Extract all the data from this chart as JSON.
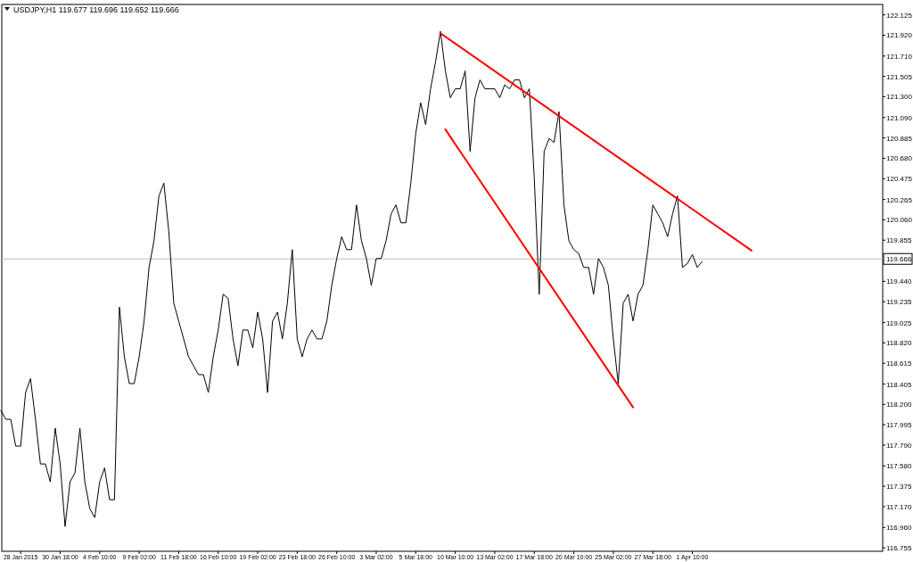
{
  "chart_data": {
    "type": "line",
    "title": "USDJPY,H1  119.677 119.696 119.652 119.666",
    "categories": [
      null,
      null,
      null,
      null,
      "28 Jan 2015",
      null,
      null,
      null,
      null,
      null,
      null,
      null,
      "30 Jan 18:00",
      null,
      null,
      null,
      null,
      null,
      null,
      null,
      "4 Feb 10:00",
      null,
      null,
      null,
      null,
      null,
      null,
      null,
      "9 Feb 02:00",
      null,
      null,
      null,
      null,
      null,
      null,
      null,
      "11 Feb 18:00",
      null,
      null,
      null,
      null,
      null,
      null,
      null,
      "16 Feb 10:00",
      null,
      null,
      null,
      null,
      null,
      null,
      null,
      "19 Feb 02:00",
      null,
      null,
      null,
      null,
      null,
      null,
      null,
      "23 Feb 18:00",
      null,
      null,
      null,
      null,
      null,
      null,
      null,
      "26 Feb 10:00",
      null,
      null,
      null,
      null,
      null,
      null,
      null,
      "3 Mar 02:00",
      null,
      null,
      null,
      null,
      null,
      null,
      null,
      "5 Mar 18:00",
      null,
      null,
      null,
      null,
      null,
      null,
      null,
      "10 Mar 10:00",
      null,
      null,
      null,
      null,
      null,
      null,
      null,
      "13 Mar 02:00",
      null,
      null,
      null,
      null,
      null,
      null,
      null,
      "17 Mar 18:00",
      null,
      null,
      null,
      null,
      null,
      null,
      null,
      "20 Mar 10:00",
      null,
      null,
      null,
      null,
      null,
      null,
      null,
      "25 Mar 02:00",
      null,
      null,
      null,
      null,
      null,
      null,
      null,
      "27 Mar 18:00",
      null,
      null,
      null,
      null,
      null,
      null,
      null,
      "1 Apr 10:00",
      null,
      null,
      null,
      null,
      null,
      null,
      null,
      null,
      null,
      null,
      null,
      null,
      null,
      null,
      null,
      null,
      null,
      null,
      null,
      null,
      null,
      null,
      null,
      null,
      null,
      null,
      null,
      null,
      null,
      null,
      null,
      null,
      null,
      null,
      null,
      null,
      null,
      null
    ],
    "ylim": [
      116.72,
      122.23
    ],
    "yticks": [
      116.755,
      {
        "value": 116.96,
        "label": "116.960"
      },
      {
        "value": 117.17,
        "label": "117.170"
      },
      117.375,
      {
        "value": 117.58,
        "label": "117.580"
      },
      {
        "value": 117.79,
        "label": "117.790"
      },
      117.995,
      {
        "value": 118.2,
        "label": "118.200"
      },
      118.405,
      118.615,
      {
        "value": 118.82,
        "label": "118.820"
      },
      119.025,
      119.235,
      {
        "value": 119.44,
        "label": "119.440"
      },
      119.855,
      {
        "value": 120.06,
        "label": "120.060"
      },
      120.265,
      120.475,
      {
        "value": 120.68,
        "label": "120.680"
      },
      120.885,
      {
        "value": 121.09,
        "label": "121.090"
      },
      {
        "value": 121.3,
        "label": "121.300"
      },
      121.505,
      {
        "value": 121.71,
        "label": "121.710"
      },
      {
        "value": 121.92,
        "label": "121.920"
      },
      122.125
    ],
    "grid": false,
    "series": [
      {
        "color": "#000000",
        "values": [
          118.14,
          118.05,
          118.05,
          117.78,
          117.78,
          118.32,
          118.46,
          118.05,
          117.6,
          117.6,
          117.42,
          117.96,
          117.6,
          116.97,
          117.42,
          117.51,
          117.96,
          117.42,
          117.15,
          117.06,
          117.42,
          117.56,
          117.24,
          117.24,
          119.18,
          118.68,
          118.41,
          118.41,
          118.68,
          119.04,
          119.58,
          119.85,
          120.3,
          120.43,
          119.94,
          119.22,
          119.04,
          118.86,
          118.68,
          118.59,
          118.5,
          118.5,
          118.32,
          118.68,
          118.95,
          119.31,
          119.27,
          118.86,
          118.59,
          118.95,
          118.95,
          118.77,
          119.13,
          118.86,
          118.32,
          119.04,
          119.13,
          118.86,
          119.22,
          119.76,
          118.86,
          118.68,
          118.86,
          118.95,
          118.86,
          118.86,
          119.04,
          119.4,
          119.67,
          119.89,
          119.76,
          119.76,
          120.21,
          119.85,
          119.67,
          119.4,
          119.67,
          119.67,
          119.85,
          120.12,
          120.21,
          120.03,
          120.03,
          120.43,
          120.93,
          121.24,
          121.02,
          121.38,
          121.65,
          121.96,
          121.56,
          121.29,
          121.38,
          121.38,
          121.56,
          120.75,
          121.29,
          121.47,
          121.38,
          121.38,
          121.38,
          121.29,
          121.42,
          121.38,
          121.47,
          121.47,
          121.29,
          121.38,
          120.48,
          119.31,
          120.75,
          120.88,
          120.84,
          121.15,
          120.21,
          119.85,
          119.76,
          119.72,
          119.58,
          119.58,
          119.31,
          119.67,
          119.58,
          119.4,
          118.86,
          118.41,
          119.22,
          119.31,
          119.04,
          119.31,
          119.4,
          119.76,
          120.21,
          120.12,
          120.03,
          119.89,
          120.12,
          120.3,
          119.58,
          119.62,
          119.71,
          119.58,
          119.64,
          null,
          null,
          null,
          null,
          null,
          null,
          null,
          null,
          null,
          null,
          null,
          null,
          null,
          null,
          null,
          null,
          null,
          null,
          null,
          null,
          null,
          null,
          null,
          null,
          null,
          null,
          null,
          null,
          null,
          null,
          null,
          null,
          null,
          null,
          null,
          null
        ]
      },
      {
        "color": "#ff0000",
        "values": [
          null,
          null,
          null,
          null,
          null,
          null,
          null,
          null,
          null,
          null,
          null,
          null,
          null,
          null,
          null,
          null,
          null,
          null,
          null,
          null,
          null,
          null,
          null,
          null,
          null,
          null,
          null,
          null,
          null,
          null,
          null,
          null,
          null,
          null,
          null,
          null,
          null,
          null,
          null,
          null,
          null,
          null,
          null,
          null,
          null,
          null,
          null,
          null,
          null,
          null,
          null,
          null,
          null,
          null,
          null,
          null,
          null,
          null,
          null,
          null,
          null,
          null,
          null,
          null,
          null,
          null,
          null,
          null,
          null,
          null,
          null,
          null,
          null,
          null,
          null,
          null,
          null,
          null,
          null,
          null,
          null,
          null,
          null,
          null,
          null,
          null,
          null,
          null,
          null,
          121.94,
          null,
          null,
          null,
          null,
          null,
          null,
          null,
          null,
          null,
          null,
          null,
          null,
          null,
          null,
          null,
          null,
          null,
          null,
          null,
          null,
          null,
          null,
          null,
          null,
          null,
          null,
          null,
          null,
          null,
          null,
          null,
          null,
          null,
          null,
          null,
          null,
          null,
          null,
          null,
          null,
          null,
          null,
          null,
          null,
          null,
          null,
          null,
          null,
          null,
          null,
          null,
          null,
          null,
          null,
          null,
          null,
          null,
          null,
          null,
          null,
          null,
          null,
          119.75,
          null,
          null,
          null,
          null,
          null,
          null,
          null,
          null,
          null,
          null,
          null,
          null,
          null,
          null,
          null,
          null,
          null,
          null,
          null,
          null,
          null,
          null,
          null,
          null,
          null,
          null
        ]
      },
      {
        "color": "#ff0000",
        "values": [
          null,
          null,
          null,
          null,
          null,
          null,
          null,
          null,
          null,
          null,
          null,
          null,
          null,
          null,
          null,
          null,
          null,
          null,
          null,
          null,
          null,
          null,
          null,
          null,
          null,
          null,
          null,
          null,
          null,
          null,
          null,
          null,
          null,
          null,
          null,
          null,
          null,
          null,
          null,
          null,
          null,
          null,
          null,
          null,
          null,
          null,
          null,
          null,
          null,
          null,
          null,
          null,
          null,
          null,
          null,
          null,
          null,
          null,
          null,
          null,
          null,
          null,
          null,
          null,
          null,
          null,
          null,
          null,
          null,
          null,
          null,
          null,
          null,
          null,
          null,
          null,
          null,
          null,
          null,
          null,
          null,
          null,
          null,
          null,
          null,
          null,
          null,
          null,
          null,
          null,
          120.97,
          null,
          null,
          null,
          null,
          null,
          null,
          null,
          null,
          null,
          null,
          null,
          null,
          null,
          null,
          null,
          null,
          null,
          null,
          null,
          null,
          null,
          null,
          null,
          null,
          null,
          null,
          null,
          null,
          null,
          null,
          null,
          null,
          null,
          null,
          null,
          null,
          null,
          118.17,
          null,
          null,
          null,
          null,
          null,
          null,
          null,
          null,
          null,
          null,
          null,
          null,
          null,
          null,
          null,
          null,
          null,
          null,
          null,
          null,
          null,
          null,
          null,
          null,
          null,
          null,
          null,
          null,
          null,
          null,
          null,
          null,
          null,
          null,
          null,
          null,
          null,
          null,
          null,
          null,
          null,
          null,
          null,
          null,
          null,
          null,
          null,
          null,
          null,
          null
        ]
      }
    ],
    "ref_lines": [
      {
        "axis": "y",
        "value": 119.666,
        "label": "119.666",
        "color": "#c0c0c0"
      }
    ]
  }
}
